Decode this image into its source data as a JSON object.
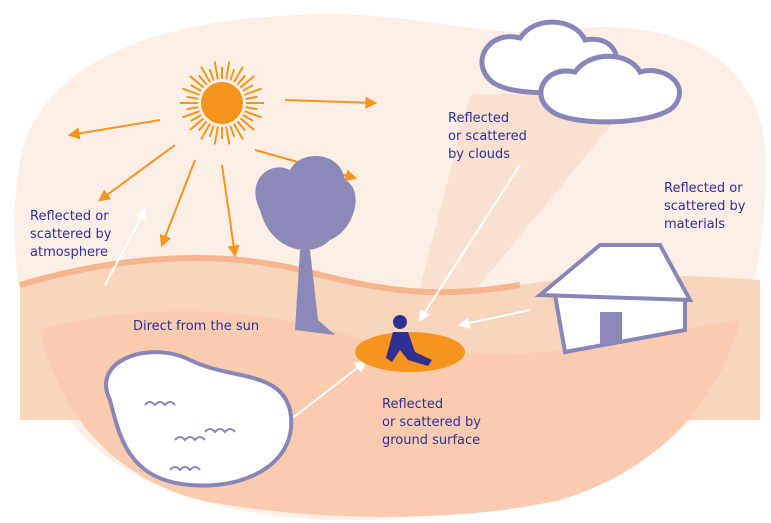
{
  "labels": [
    {
      "lines": [
        "Reflected or",
        "scattered by",
        "atmosphere"
      ]
    },
    {
      "lines": [
        "Reflected",
        "or scattered",
        "by clouds"
      ]
    },
    {
      "lines": [
        "Reflected or",
        "scattered by",
        "materials"
      ]
    },
    {
      "lines": [
        "Direct from the sun"
      ]
    },
    {
      "lines": [
        "Reflected",
        "or scattered by",
        "ground surface"
      ]
    }
  ]
}
